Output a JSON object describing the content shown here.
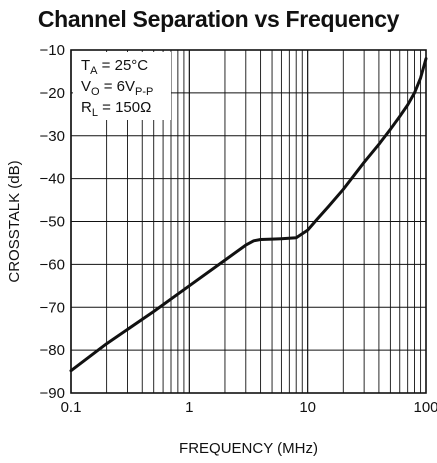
{
  "chart_data": {
    "type": "line",
    "title": "Channel Separation vs Frequency",
    "xlabel": "FREQUENCY (MHz)",
    "ylabel": "CROSSTALK (dB)",
    "x_scale": "log",
    "xlim": [
      0.1,
      100
    ],
    "ylim": [
      -90,
      -10
    ],
    "x_ticks": [
      "0.1",
      "1",
      "10",
      "100"
    ],
    "y_ticks": [
      "−10",
      "−20",
      "−30",
      "−40",
      "−50",
      "−60",
      "−70",
      "−80",
      "−90"
    ],
    "grid": true,
    "annotation": {
      "line1_main": "T",
      "line1_sub": "A",
      "line1_rest": " = 25°C",
      "line2_main": "V",
      "line2_sub": "O",
      "line2_rest": " = 6V",
      "line2_sub2": "P-P",
      "line3_main": "R",
      "line3_sub": "L",
      "line3_rest": " = 150Ω"
    },
    "series": [
      {
        "x": [
          0.1,
          0.2,
          0.5,
          1,
          2,
          3,
          3.5,
          4,
          5,
          6,
          8,
          10,
          12,
          15,
          20,
          30,
          40,
          50,
          60,
          70,
          80,
          90,
          100
        ],
        "values": [
          -84.8,
          -78.5,
          -71.0,
          -65.0,
          -59.0,
          -55.5,
          -54.5,
          -54.2,
          -54.1,
          -54.0,
          -53.8,
          -52.0,
          -49.5,
          -46.5,
          -42.5,
          -36.2,
          -32.0,
          -28.5,
          -25.5,
          -22.8,
          -20.0,
          -16.5,
          -12.0
        ]
      }
    ]
  }
}
